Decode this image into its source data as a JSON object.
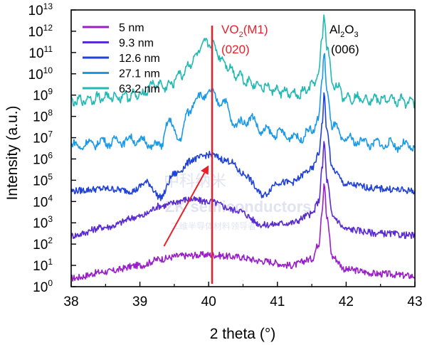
{
  "chart_data": {
    "type": "line",
    "xlabel": "2 theta (°)",
    "ylabel": "Intensity (a.u.)",
    "xlim": [
      38,
      43
    ],
    "ylim_log10": [
      0,
      13
    ],
    "y_scale": "log",
    "x_ticks": [
      "38",
      "39",
      "40",
      "41",
      "42",
      "43"
    ],
    "y_ticks": [
      {
        "base": "10",
        "exp": "0"
      },
      {
        "base": "10",
        "exp": "1"
      },
      {
        "base": "10",
        "exp": "2"
      },
      {
        "base": "10",
        "exp": "3"
      },
      {
        "base": "10",
        "exp": "4"
      },
      {
        "base": "10",
        "exp": "5"
      },
      {
        "base": "10",
        "exp": "6"
      },
      {
        "base": "10",
        "exp": "7"
      },
      {
        "base": "10",
        "exp": "8"
      },
      {
        "base": "10",
        "exp": "9"
      },
      {
        "base": "10",
        "exp": "10"
      },
      {
        "base": "10",
        "exp": "11"
      },
      {
        "base": "10",
        "exp": "12"
      },
      {
        "base": "10",
        "exp": "13"
      }
    ],
    "legend_position": "top-left",
    "series": [
      {
        "name": "5 nm",
        "color": "#9b1fc9",
        "x": [
          38.0,
          38.5,
          39.0,
          39.3,
          39.6,
          40.0,
          40.4,
          40.8,
          41.2,
          41.5,
          41.6,
          41.65,
          41.68,
          41.72,
          41.8,
          42.0,
          42.5,
          43.0
        ],
        "log10_y": [
          0.4,
          0.7,
          1.0,
          1.3,
          1.45,
          1.5,
          1.4,
          1.2,
          1.0,
          1.3,
          2.0,
          3.6,
          4.9,
          3.2,
          1.4,
          0.8,
          0.6,
          0.5
        ]
      },
      {
        "name": "9.3 nm",
        "color": "#5a2bd1",
        "x": [
          38.0,
          38.5,
          39.0,
          39.3,
          39.7,
          40.0,
          40.4,
          40.8,
          41.2,
          41.5,
          41.6,
          41.65,
          41.68,
          41.72,
          41.8,
          42.0,
          42.5,
          43.0
        ],
        "log10_y": [
          2.4,
          2.8,
          3.3,
          3.8,
          4.1,
          4.0,
          3.6,
          2.9,
          3.0,
          3.4,
          4.0,
          5.5,
          6.8,
          5.0,
          3.3,
          2.7,
          2.5,
          2.4
        ]
      },
      {
        "name": "12.6 nm",
        "color": "#2142d6",
        "x": [
          38.0,
          38.5,
          38.9,
          39.1,
          39.3,
          39.5,
          39.8,
          40.0,
          40.3,
          40.5,
          40.8,
          41.0,
          41.2,
          41.5,
          41.6,
          41.65,
          41.68,
          41.72,
          41.8,
          42.0,
          42.5,
          43.0
        ],
        "log10_y": [
          4.5,
          4.6,
          4.5,
          4.9,
          4.2,
          5.3,
          6.0,
          6.2,
          5.9,
          5.3,
          4.3,
          4.9,
          4.9,
          5.5,
          6.2,
          7.6,
          9.0,
          7.3,
          5.5,
          4.8,
          4.6,
          4.5
        ]
      },
      {
        "name": "27.1 nm",
        "color": "#1a9ae6",
        "x": [
          38.0,
          38.5,
          38.9,
          39.3,
          39.4,
          39.6,
          39.7,
          39.8,
          40.0,
          40.2,
          40.4,
          40.6,
          40.8,
          41.0,
          41.3,
          41.5,
          41.6,
          41.65,
          41.68,
          41.72,
          41.8,
          42.0,
          42.5,
          43.0
        ],
        "log10_y": [
          6.6,
          6.8,
          6.9,
          6.6,
          7.7,
          7.0,
          8.2,
          8.8,
          9.1,
          8.7,
          7.6,
          7.9,
          7.3,
          7.2,
          7.0,
          7.3,
          8.0,
          9.5,
          10.9,
          9.3,
          7.5,
          6.9,
          6.7,
          6.6
        ]
      },
      {
        "name": "63.2 nm",
        "color": "#21b9b1",
        "x": [
          38.0,
          38.5,
          39.0,
          39.2,
          39.4,
          39.6,
          39.8,
          39.9,
          40.0,
          40.1,
          40.2,
          40.4,
          40.6,
          40.8,
          41.0,
          41.3,
          41.5,
          41.6,
          41.65,
          41.68,
          41.72,
          41.8,
          42.0,
          42.5,
          43.0
        ],
        "log10_y": [
          8.7,
          8.9,
          9.0,
          9.5,
          9.4,
          10.0,
          10.7,
          11.3,
          11.5,
          11.2,
          10.6,
          10.0,
          9.6,
          9.4,
          9.2,
          9.0,
          9.4,
          10.0,
          11.5,
          12.9,
          11.3,
          9.6,
          8.9,
          8.8,
          8.7
        ]
      }
    ],
    "annotations": {
      "vo2_main": "VO",
      "vo2_sub": "2",
      "vo2_rest": "(M1)",
      "vo2_index": "(020)",
      "vo2_color": "#e8202a",
      "al2o3_a": "Al",
      "al2o3_sub1": "2",
      "al2o3_b": "O",
      "al2o3_sub2": "3",
      "al2o3_index": "(006)",
      "vo2_line_x": 40.05,
      "arrow_from": {
        "x": 39.35,
        "log10_y": 1.9
      },
      "arrow_to": {
        "x": 40.0,
        "log10_y": 5.7
      }
    },
    "watermark": {
      "line1": "中科纳米",
      "symbol": "®",
      "line2": "ZK semiconductors",
      "line3": "二维半导体材料领导者"
    }
  }
}
